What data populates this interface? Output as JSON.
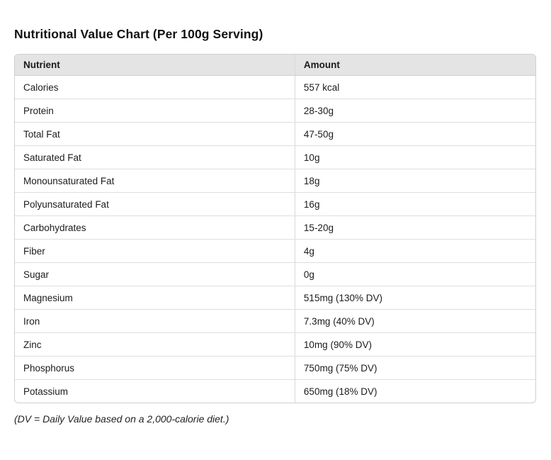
{
  "page": {
    "title": "Nutritional Value Chart (Per 100g Serving)",
    "footnote": "(DV = Daily Value based on a 2,000-calorie diet.)"
  },
  "table": {
    "columns": [
      "Nutrient",
      "Amount"
    ],
    "cell_names": [
      "nutrient-cell",
      "amount-cell"
    ],
    "rows": [
      [
        "Calories",
        "557 kcal"
      ],
      [
        "Protein",
        "28-30g"
      ],
      [
        "Total Fat",
        "47-50g"
      ],
      [
        "Saturated Fat",
        "10g"
      ],
      [
        "Monounsaturated Fat",
        "18g"
      ],
      [
        "Polyunsaturated Fat",
        "16g"
      ],
      [
        "Carbohydrates",
        "15-20g"
      ],
      [
        "Fiber",
        "4g"
      ],
      [
        "Sugar",
        "0g"
      ],
      [
        "Magnesium",
        "515mg (130% DV)"
      ],
      [
        "Iron",
        "7.3mg (40% DV)"
      ],
      [
        "Zinc",
        "10mg (90% DV)"
      ],
      [
        "Phosphorus",
        "750mg (75% DV)"
      ],
      [
        "Potassium",
        "650mg (18% DV)"
      ]
    ]
  },
  "colors": {
    "header_bg": "#e4e4e4",
    "outer_border": "#cfcfcf",
    "row_divider": "#dedede",
    "text": "#1b1b1b",
    "background": "#ffffff"
  }
}
